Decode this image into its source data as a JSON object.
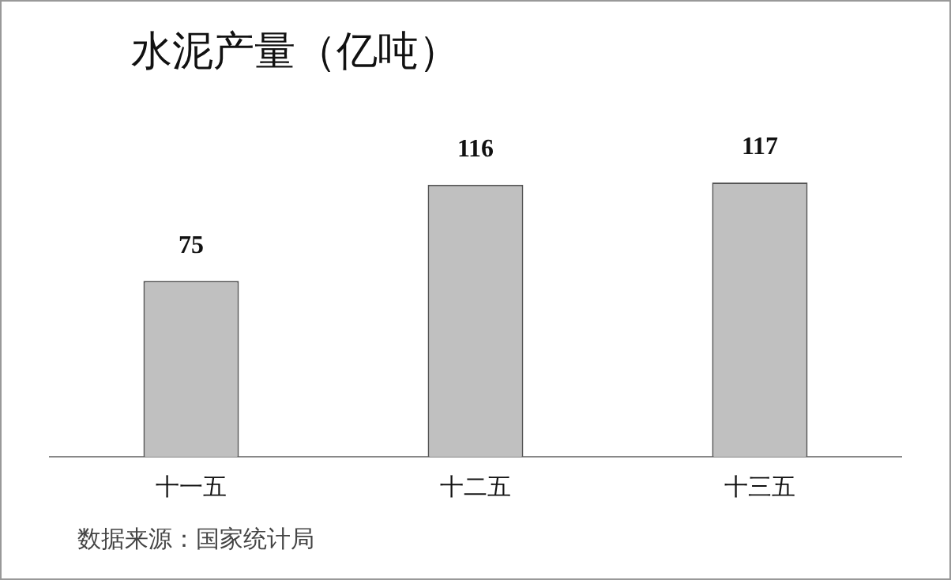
{
  "chart_data": {
    "type": "bar",
    "title": "水泥产量（亿吨）",
    "categories": [
      "十一五",
      "十二五",
      "十三五"
    ],
    "values": [
      75,
      116,
      117
    ],
    "color": "#c0c0c0",
    "data_labels": true,
    "grid": false,
    "annotations": [
      "数据来源：国家统计局"
    ]
  }
}
